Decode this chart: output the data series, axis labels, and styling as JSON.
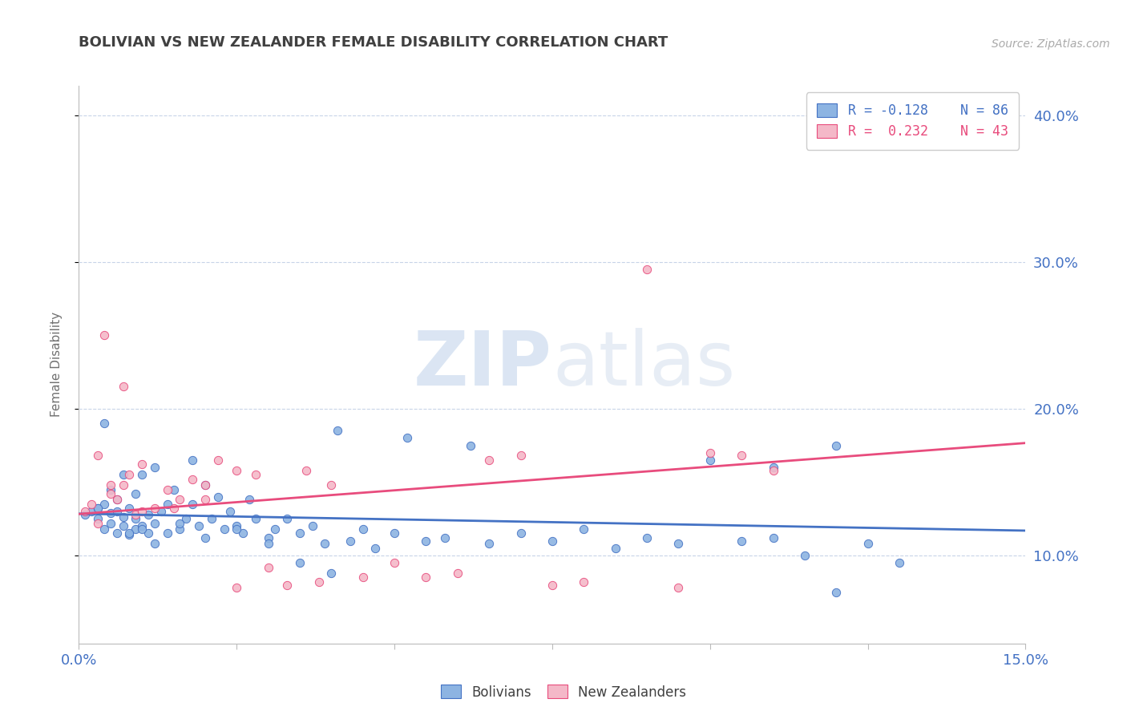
{
  "title": "BOLIVIAN VS NEW ZEALANDER FEMALE DISABILITY CORRELATION CHART",
  "source_text": "Source: ZipAtlas.com",
  "ylabel": "Female Disability",
  "xlim": [
    0.0,
    0.15
  ],
  "ylim": [
    0.04,
    0.42
  ],
  "yticks": [
    0.1,
    0.2,
    0.3,
    0.4
  ],
  "xticks": [
    0.0,
    0.025,
    0.05,
    0.075,
    0.1,
    0.125,
    0.15
  ],
  "xtick_labels": [
    "0.0%",
    "",
    "",
    "",
    "",
    "",
    "15.0%"
  ],
  "ytick_labels": [
    "10.0%",
    "20.0%",
    "30.0%",
    "40.0%"
  ],
  "bolivian_color": "#8db4e2",
  "nz_color": "#f4b8c8",
  "bolivian_line_color": "#4472c4",
  "nz_line_color": "#e84c7d",
  "R_bolivian": -0.128,
  "N_bolivian": 86,
  "R_nz": 0.232,
  "N_nz": 43,
  "legend_label_bolivian": "Bolivians",
  "legend_label_nz": "New Zealanders",
  "watermark_zip": "ZIP",
  "watermark_atlas": "atlas",
  "background_color": "#ffffff",
  "grid_color": "#c8d4e8",
  "title_color": "#404040",
  "axis_label_color": "#4472c4",
  "bolivians_x": [
    0.001,
    0.002,
    0.003,
    0.003,
    0.004,
    0.004,
    0.005,
    0.005,
    0.006,
    0.006,
    0.007,
    0.007,
    0.008,
    0.008,
    0.009,
    0.009,
    0.01,
    0.01,
    0.011,
    0.011,
    0.012,
    0.012,
    0.013,
    0.014,
    0.015,
    0.016,
    0.017,
    0.018,
    0.019,
    0.02,
    0.021,
    0.022,
    0.023,
    0.024,
    0.025,
    0.026,
    0.027,
    0.028,
    0.03,
    0.031,
    0.033,
    0.035,
    0.037,
    0.039,
    0.041,
    0.043,
    0.045,
    0.047,
    0.05,
    0.052,
    0.055,
    0.058,
    0.062,
    0.065,
    0.07,
    0.075,
    0.08,
    0.085,
    0.09,
    0.095,
    0.1,
    0.105,
    0.11,
    0.115,
    0.12,
    0.125,
    0.13,
    0.003,
    0.004,
    0.005,
    0.006,
    0.007,
    0.008,
    0.009,
    0.01,
    0.012,
    0.014,
    0.016,
    0.018,
    0.02,
    0.025,
    0.03,
    0.035,
    0.04,
    0.11,
    0.12
  ],
  "bolivians_y": [
    0.128,
    0.13,
    0.125,
    0.132,
    0.118,
    0.135,
    0.122,
    0.129,
    0.115,
    0.138,
    0.12,
    0.126,
    0.114,
    0.132,
    0.118,
    0.125,
    0.12,
    0.155,
    0.115,
    0.128,
    0.122,
    0.16,
    0.13,
    0.135,
    0.145,
    0.118,
    0.125,
    0.165,
    0.12,
    0.112,
    0.125,
    0.14,
    0.118,
    0.13,
    0.12,
    0.115,
    0.138,
    0.125,
    0.112,
    0.118,
    0.125,
    0.115,
    0.12,
    0.108,
    0.185,
    0.11,
    0.118,
    0.105,
    0.115,
    0.18,
    0.11,
    0.112,
    0.175,
    0.108,
    0.115,
    0.11,
    0.118,
    0.105,
    0.112,
    0.108,
    0.165,
    0.11,
    0.112,
    0.1,
    0.175,
    0.108,
    0.095,
    0.132,
    0.19,
    0.145,
    0.13,
    0.155,
    0.115,
    0.142,
    0.118,
    0.108,
    0.115,
    0.122,
    0.135,
    0.148,
    0.118,
    0.108,
    0.095,
    0.088,
    0.16,
    0.075
  ],
  "nz_x": [
    0.001,
    0.002,
    0.003,
    0.004,
    0.005,
    0.006,
    0.007,
    0.008,
    0.009,
    0.01,
    0.012,
    0.014,
    0.016,
    0.018,
    0.02,
    0.022,
    0.025,
    0.028,
    0.03,
    0.033,
    0.036,
    0.04,
    0.045,
    0.05,
    0.055,
    0.06,
    0.065,
    0.07,
    0.075,
    0.08,
    0.09,
    0.095,
    0.1,
    0.105,
    0.11,
    0.003,
    0.005,
    0.007,
    0.01,
    0.015,
    0.02,
    0.025,
    0.038
  ],
  "nz_y": [
    0.13,
    0.135,
    0.122,
    0.25,
    0.142,
    0.138,
    0.148,
    0.155,
    0.128,
    0.162,
    0.132,
    0.145,
    0.138,
    0.152,
    0.148,
    0.165,
    0.158,
    0.155,
    0.092,
    0.08,
    0.158,
    0.148,
    0.085,
    0.095,
    0.085,
    0.088,
    0.165,
    0.168,
    0.08,
    0.082,
    0.295,
    0.078,
    0.17,
    0.168,
    0.158,
    0.168,
    0.148,
    0.215,
    0.13,
    0.132,
    0.138,
    0.078,
    0.082
  ]
}
